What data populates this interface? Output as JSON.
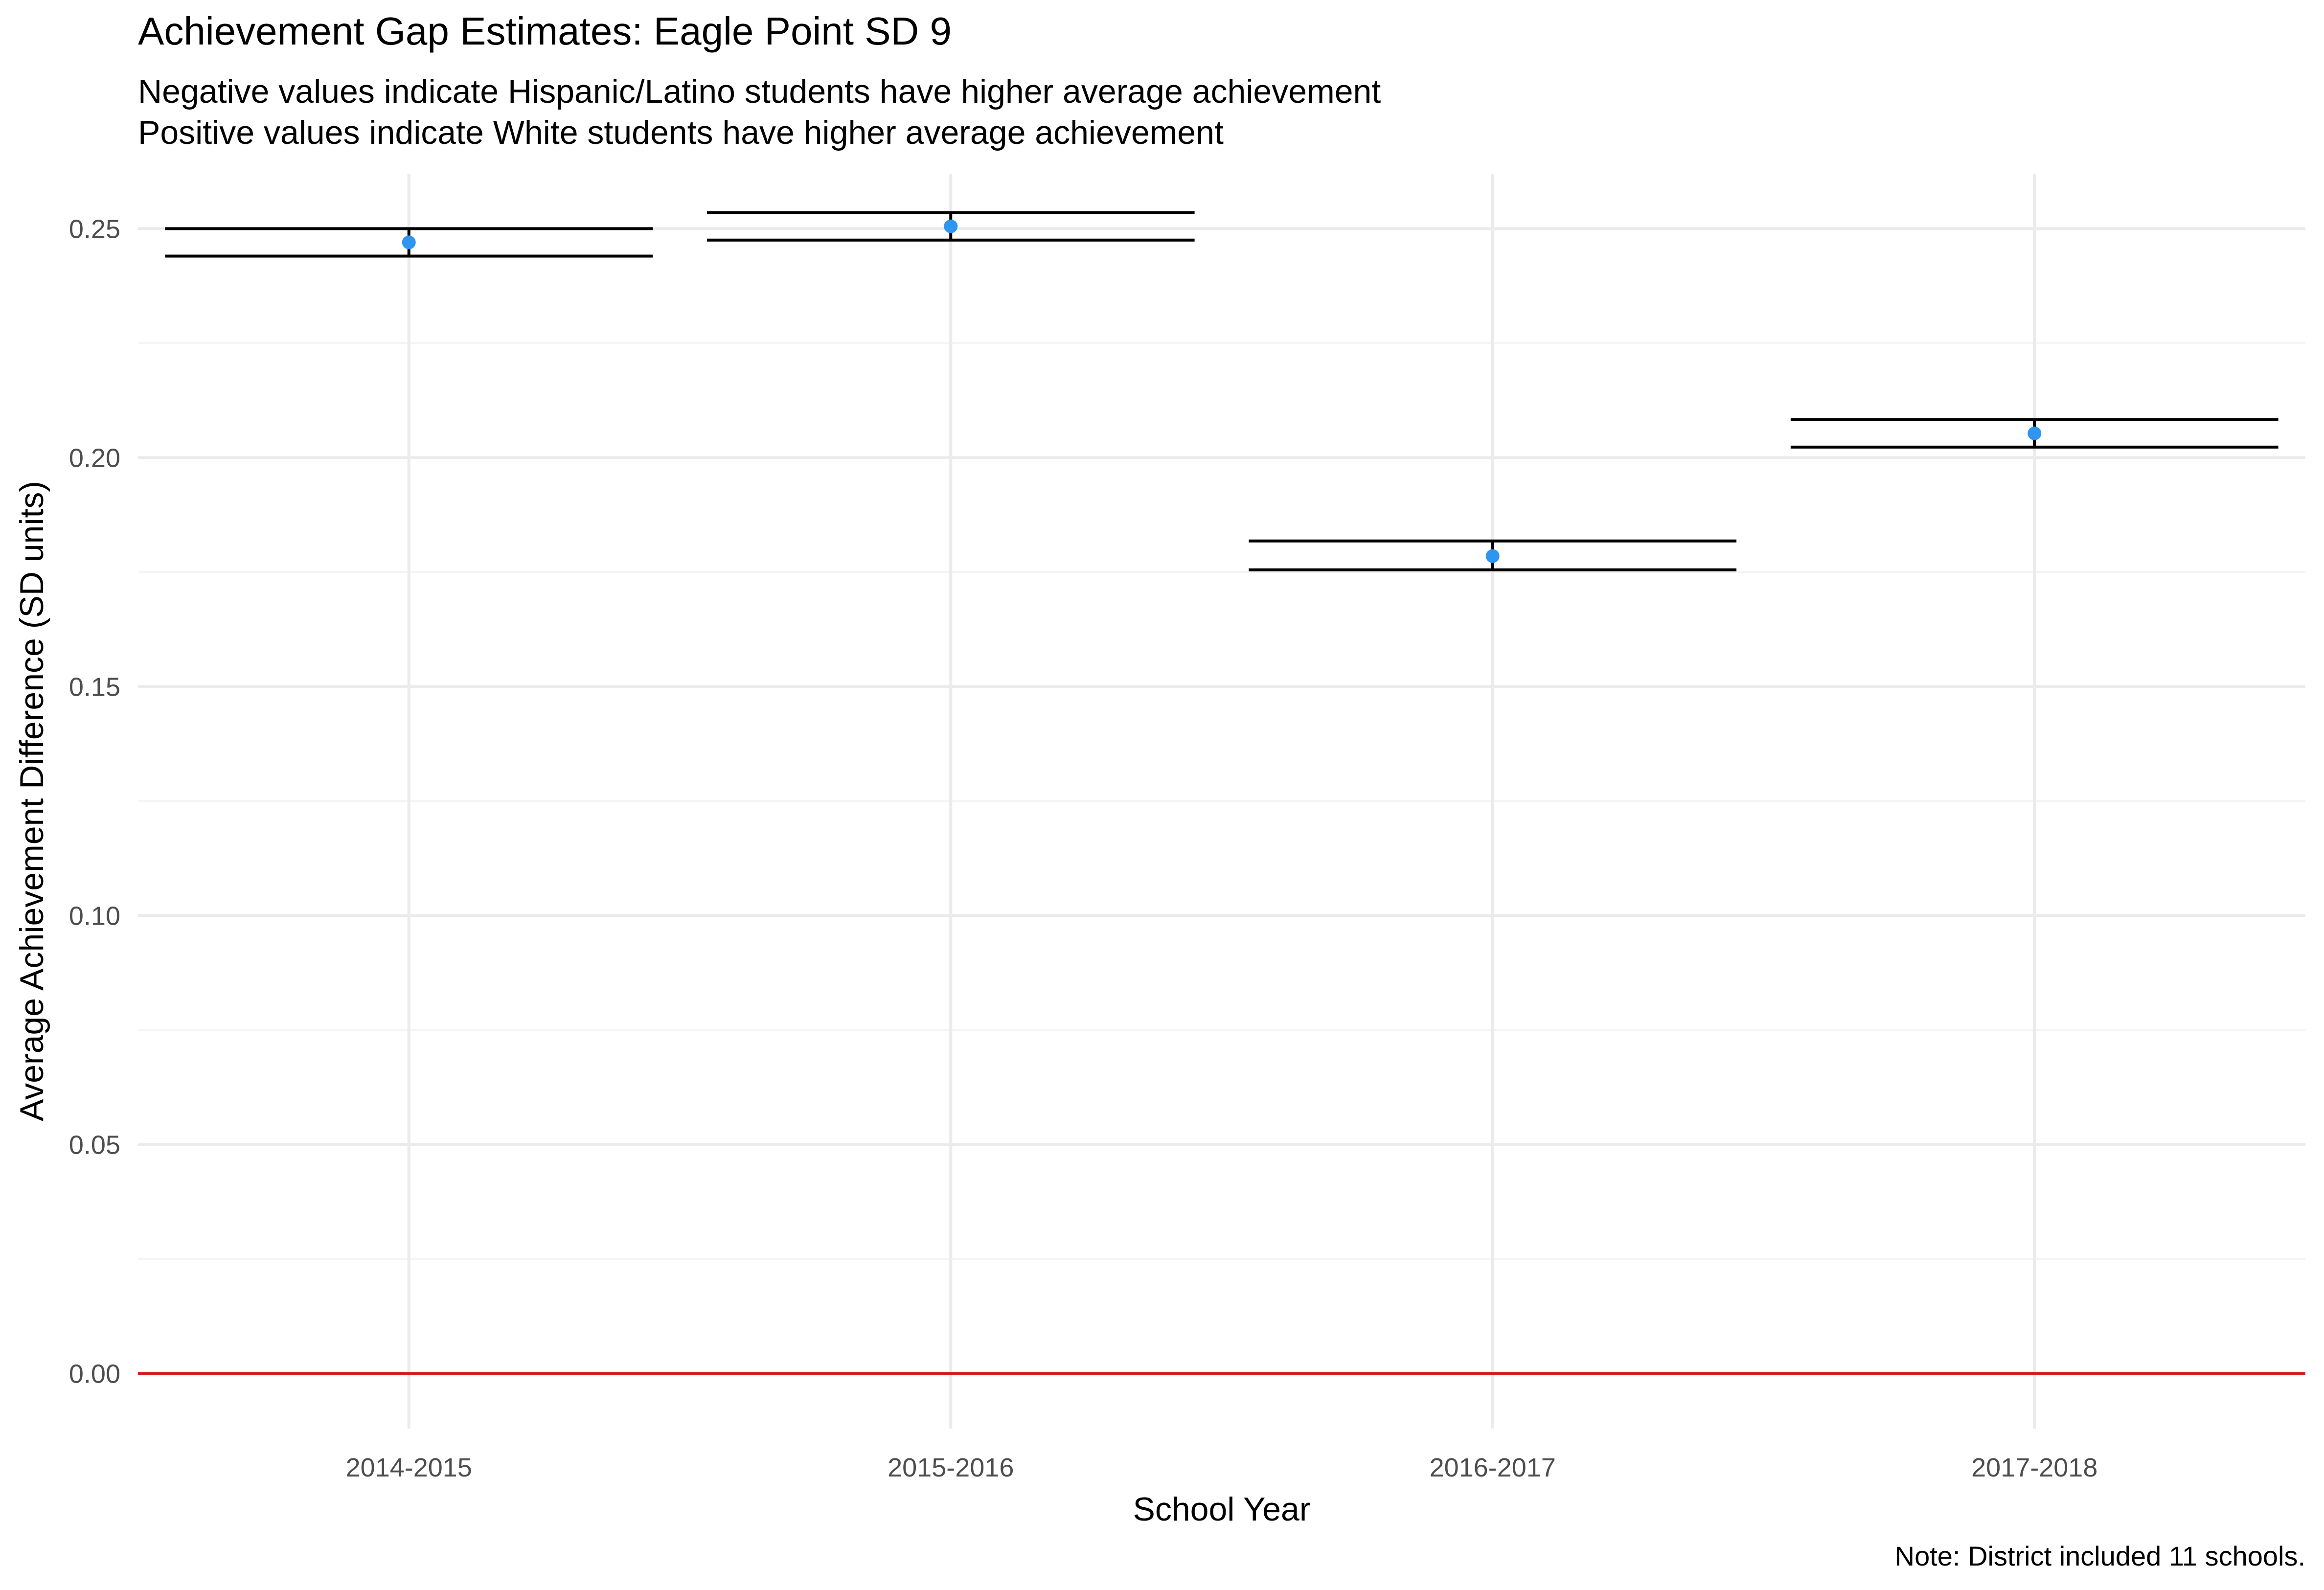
{
  "chart_data": {
    "type": "scatter",
    "title": "Achievement Gap Estimates: Eagle Point SD 9",
    "subtitle_lines": [
      "Negative values indicate Hispanic/Latino students have higher average achievement",
      "Positive values indicate White students have higher average achievement"
    ],
    "xlabel": "School Year",
    "ylabel": "Average Achievement Difference (SD units)",
    "caption": "Note: District included 11 schools.",
    "categories": [
      "2014-2015",
      "2015-2016",
      "2016-2017",
      "2017-2018"
    ],
    "points": [
      {
        "x": "2014-2015",
        "y": 0.247,
        "lower": 0.244,
        "upper": 0.25
      },
      {
        "x": "2015-2016",
        "y": 0.2505,
        "lower": 0.2475,
        "upper": 0.2535
      },
      {
        "x": "2016-2017",
        "y": 0.1785,
        "lower": 0.1755,
        "upper": 0.1818
      },
      {
        "x": "2017-2018",
        "y": 0.2053,
        "lower": 0.2023,
        "upper": 0.2083
      }
    ],
    "ylim": [
      -0.012,
      0.262
    ],
    "yticks": [
      "0.00",
      "0.05",
      "0.10",
      "0.15",
      "0.20",
      "0.25"
    ],
    "reference_line": 0,
    "grid": true,
    "colors": {
      "point": "#2E95F0",
      "errorbar": "#000000",
      "reference": "#D7191C",
      "grid_major": "#EBEBEB",
      "grid_minor": "#F4F4F4",
      "tick_text": "#4D4D4D"
    }
  }
}
